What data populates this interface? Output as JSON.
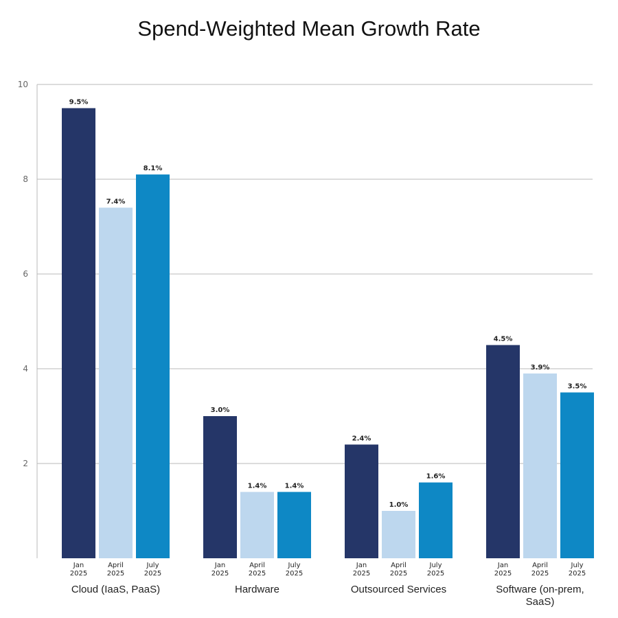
{
  "chart_data": {
    "type": "bar",
    "title": "Spend-Weighted Mean Growth Rate",
    "xlabel": "",
    "ylabel": "",
    "ylim": [
      0,
      10
    ],
    "yticks": [
      2,
      4,
      6,
      8,
      10
    ],
    "grid": true,
    "categories": [
      {
        "lines": [
          "Cloud (IaaS, PaaS)"
        ]
      },
      {
        "lines": [
          "Hardware"
        ]
      },
      {
        "lines": [
          "Outsourced Services"
        ]
      },
      {
        "lines": [
          "Software (on-prem,",
          "SaaS)"
        ]
      }
    ],
    "series": [
      {
        "name": "Jan 2025",
        "sub_lines": [
          "Jan",
          "2025"
        ],
        "color": "#253668",
        "values": [
          9.5,
          3.0,
          2.4,
          4.5
        ],
        "labels": [
          "9.5%",
          "3.0%",
          "2.4%",
          "4.5%"
        ]
      },
      {
        "name": "April 2025",
        "sub_lines": [
          "April",
          "2025"
        ],
        "color": "#bdd7ee",
        "values": [
          7.4,
          1.4,
          1.0,
          3.9
        ],
        "labels": [
          "7.4%",
          "1.4%",
          "1.0%",
          "3.9%"
        ]
      },
      {
        "name": "July 2025",
        "sub_lines": [
          "July",
          "2025"
        ],
        "color": "#0e88c5",
        "values": [
          8.1,
          1.4,
          1.6,
          3.5
        ],
        "labels": [
          "8.1%",
          "1.4%",
          "1.6%",
          "3.5%"
        ]
      }
    ]
  }
}
